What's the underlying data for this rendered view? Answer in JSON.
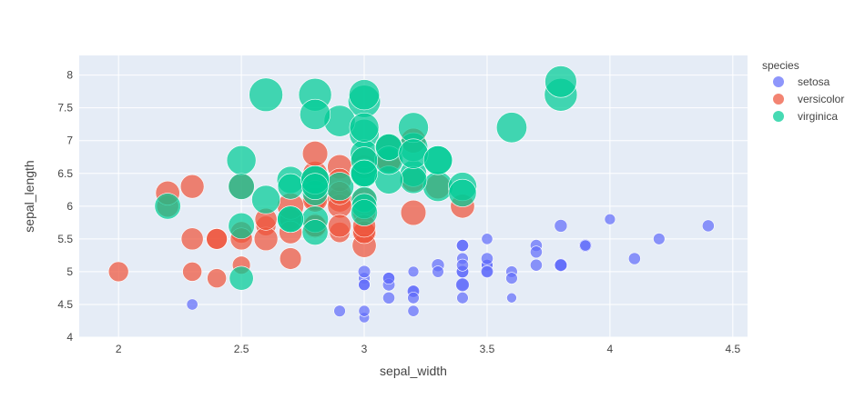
{
  "chart_data": {
    "type": "scatter",
    "title": "",
    "xlabel": "sepal_width",
    "ylabel": "sepal_length",
    "xlim": [
      1.84,
      4.56
    ],
    "ylim": [
      4.0,
      8.3
    ],
    "xticks": [
      "2",
      "2.5",
      "3",
      "3.5",
      "4",
      "4.5"
    ],
    "xtick_values": [
      2,
      2.5,
      3,
      3.5,
      4,
      4.5
    ],
    "yticks": [
      "4",
      "4.5",
      "5",
      "5.5",
      "6",
      "6.5",
      "7",
      "7.5",
      "8"
    ],
    "ytick_values": [
      4,
      4.5,
      5,
      5.5,
      6,
      6.5,
      7,
      7.5,
      8
    ],
    "grid": true,
    "plot_background": "#e5ecf6",
    "grid_color": "#ffffff",
    "legend": {
      "title": "species",
      "placement": "right"
    },
    "marker_size_encodes": "petal_length",
    "series": [
      {
        "name": "setosa",
        "color": "#636efa",
        "points": [
          [
            3.5,
            5.1,
            1.4
          ],
          [
            3.0,
            4.9,
            1.4
          ],
          [
            3.2,
            4.7,
            1.3
          ],
          [
            3.1,
            4.6,
            1.5
          ],
          [
            3.6,
            5.0,
            1.4
          ],
          [
            3.9,
            5.4,
            1.7
          ],
          [
            3.4,
            4.6,
            1.4
          ],
          [
            3.4,
            5.0,
            1.5
          ],
          [
            2.9,
            4.4,
            1.4
          ],
          [
            3.1,
            4.9,
            1.5
          ],
          [
            3.7,
            5.4,
            1.5
          ],
          [
            3.4,
            4.8,
            1.6
          ],
          [
            3.0,
            4.8,
            1.4
          ],
          [
            3.0,
            4.3,
            1.1
          ],
          [
            4.0,
            5.8,
            1.2
          ],
          [
            4.4,
            5.7,
            1.5
          ],
          [
            3.9,
            5.4,
            1.3
          ],
          [
            3.5,
            5.1,
            1.4
          ],
          [
            3.8,
            5.7,
            1.7
          ],
          [
            3.8,
            5.1,
            1.5
          ],
          [
            3.4,
            5.4,
            1.7
          ],
          [
            3.7,
            5.1,
            1.5
          ],
          [
            3.6,
            4.6,
            1.0
          ],
          [
            3.3,
            5.1,
            1.7
          ],
          [
            3.4,
            4.8,
            1.9
          ],
          [
            3.0,
            5.0,
            1.6
          ],
          [
            3.4,
            5.0,
            1.6
          ],
          [
            3.5,
            5.2,
            1.5
          ],
          [
            3.4,
            5.2,
            1.4
          ],
          [
            3.2,
            4.7,
            1.6
          ],
          [
            3.1,
            4.8,
            1.6
          ],
          [
            3.4,
            5.4,
            1.5
          ],
          [
            4.1,
            5.2,
            1.5
          ],
          [
            4.2,
            5.5,
            1.4
          ],
          [
            3.1,
            4.9,
            1.5
          ],
          [
            3.2,
            5.0,
            1.2
          ],
          [
            3.5,
            5.5,
            1.3
          ],
          [
            3.6,
            4.9,
            1.4
          ],
          [
            3.0,
            4.4,
            1.3
          ],
          [
            3.4,
            5.1,
            1.5
          ],
          [
            3.5,
            5.0,
            1.3
          ],
          [
            2.3,
            4.5,
            1.3
          ],
          [
            3.2,
            4.4,
            1.3
          ],
          [
            3.5,
            5.0,
            1.6
          ],
          [
            3.8,
            5.1,
            1.9
          ],
          [
            3.0,
            4.8,
            1.4
          ],
          [
            3.8,
            5.1,
            1.6
          ],
          [
            3.2,
            4.6,
            1.4
          ],
          [
            3.7,
            5.3,
            1.5
          ],
          [
            3.3,
            5.0,
            1.4
          ]
        ]
      },
      {
        "name": "versicolor",
        "color": "#ef553b",
        "points": [
          [
            3.2,
            7.0,
            4.7
          ],
          [
            3.2,
            6.4,
            4.5
          ],
          [
            3.1,
            6.9,
            4.9
          ],
          [
            2.3,
            5.5,
            4.0
          ],
          [
            2.8,
            6.5,
            4.6
          ],
          [
            2.8,
            5.7,
            4.5
          ],
          [
            3.3,
            6.3,
            4.7
          ],
          [
            2.4,
            4.9,
            3.3
          ],
          [
            2.9,
            6.6,
            4.6
          ],
          [
            2.7,
            5.2,
            3.9
          ],
          [
            2.0,
            5.0,
            3.5
          ],
          [
            3.0,
            5.9,
            4.2
          ],
          [
            2.2,
            6.0,
            4.0
          ],
          [
            2.9,
            6.1,
            4.7
          ],
          [
            2.9,
            5.6,
            3.6
          ],
          [
            3.1,
            6.7,
            4.4
          ],
          [
            3.0,
            5.6,
            4.5
          ],
          [
            2.7,
            5.8,
            4.1
          ],
          [
            2.2,
            6.2,
            4.5
          ],
          [
            2.5,
            5.6,
            3.9
          ],
          [
            3.2,
            5.9,
            4.8
          ],
          [
            2.8,
            6.1,
            4.0
          ],
          [
            2.5,
            6.3,
            4.9
          ],
          [
            2.8,
            6.1,
            4.7
          ],
          [
            2.9,
            6.4,
            4.3
          ],
          [
            3.0,
            6.6,
            4.4
          ],
          [
            2.8,
            6.8,
            4.8
          ],
          [
            3.0,
            6.7,
            5.0
          ],
          [
            2.9,
            6.0,
            4.5
          ],
          [
            2.6,
            5.7,
            3.5
          ],
          [
            2.4,
            5.5,
            3.8
          ],
          [
            2.4,
            5.5,
            3.7
          ],
          [
            2.7,
            5.8,
            3.9
          ],
          [
            2.7,
            6.0,
            5.1
          ],
          [
            3.0,
            5.4,
            4.5
          ],
          [
            3.4,
            6.0,
            4.5
          ],
          [
            3.1,
            6.7,
            4.7
          ],
          [
            2.3,
            6.3,
            4.4
          ],
          [
            3.0,
            5.6,
            4.1
          ],
          [
            2.5,
            5.5,
            4.0
          ],
          [
            2.6,
            5.5,
            4.4
          ],
          [
            3.0,
            6.1,
            4.6
          ],
          [
            2.6,
            5.8,
            4.0
          ],
          [
            2.3,
            5.0,
            3.3
          ],
          [
            2.7,
            5.6,
            4.2
          ],
          [
            3.0,
            5.7,
            4.2
          ],
          [
            2.9,
            5.7,
            4.2
          ],
          [
            2.9,
            6.2,
            4.3
          ],
          [
            2.5,
            5.1,
            3.0
          ],
          [
            2.8,
            5.7,
            4.1
          ]
        ]
      },
      {
        "name": "virginica",
        "color": "#00cc96",
        "points": [
          [
            3.3,
            6.3,
            6.0
          ],
          [
            2.7,
            5.8,
            5.1
          ],
          [
            3.0,
            7.1,
            5.9
          ],
          [
            2.9,
            6.3,
            5.6
          ],
          [
            3.0,
            6.5,
            5.8
          ],
          [
            3.0,
            7.6,
            6.6
          ],
          [
            2.5,
            4.9,
            4.5
          ],
          [
            2.9,
            7.3,
            6.3
          ],
          [
            2.5,
            6.7,
            5.8
          ],
          [
            3.6,
            7.2,
            6.1
          ],
          [
            3.2,
            6.5,
            5.1
          ],
          [
            2.7,
            6.4,
            5.3
          ],
          [
            3.0,
            6.8,
            5.5
          ],
          [
            2.5,
            5.7,
            5.0
          ],
          [
            2.8,
            5.8,
            5.1
          ],
          [
            3.2,
            6.4,
            5.3
          ],
          [
            3.0,
            6.5,
            5.5
          ],
          [
            3.8,
            7.7,
            6.7
          ],
          [
            2.6,
            7.7,
            6.9
          ],
          [
            2.2,
            6.0,
            5.0
          ],
          [
            3.2,
            6.9,
            5.7
          ],
          [
            2.8,
            5.6,
            4.9
          ],
          [
            2.8,
            7.7,
            6.7
          ],
          [
            2.7,
            6.3,
            4.9
          ],
          [
            3.3,
            6.7,
            5.7
          ],
          [
            3.2,
            7.2,
            6.0
          ],
          [
            2.8,
            6.2,
            4.8
          ],
          [
            3.0,
            6.1,
            4.9
          ],
          [
            2.8,
            6.4,
            5.6
          ],
          [
            3.0,
            7.2,
            5.8
          ],
          [
            2.8,
            7.4,
            6.1
          ],
          [
            3.8,
            7.9,
            6.4
          ],
          [
            2.8,
            6.4,
            5.6
          ],
          [
            2.8,
            6.3,
            5.1
          ],
          [
            2.6,
            6.1,
            5.6
          ],
          [
            3.0,
            7.7,
            6.1
          ],
          [
            3.4,
            6.3,
            5.6
          ],
          [
            3.1,
            6.4,
            5.5
          ],
          [
            3.0,
            6.0,
            4.8
          ],
          [
            3.1,
            6.9,
            5.4
          ],
          [
            3.1,
            6.7,
            5.6
          ],
          [
            3.1,
            6.9,
            5.1
          ],
          [
            2.7,
            5.8,
            5.1
          ],
          [
            3.2,
            6.8,
            5.9
          ],
          [
            3.3,
            6.7,
            5.7
          ],
          [
            3.0,
            6.7,
            5.2
          ],
          [
            2.5,
            6.3,
            5.0
          ],
          [
            3.0,
            6.5,
            5.2
          ],
          [
            3.4,
            6.2,
            5.4
          ],
          [
            3.0,
            5.9,
            5.1
          ]
        ]
      }
    ]
  }
}
